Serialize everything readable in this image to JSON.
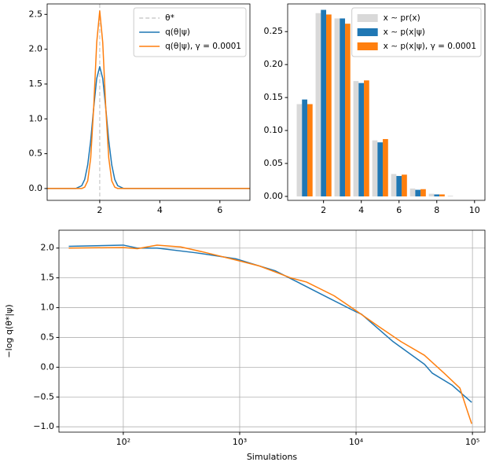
{
  "chart_data": [
    {
      "type": "line",
      "xlim": [
        0.25,
        7
      ],
      "ylim": [
        -0.17,
        2.65
      ],
      "xticks": [
        2,
        4,
        6
      ],
      "yticks": [
        {
          "value": 0,
          "label": "0.0"
        },
        {
          "value": 0.5,
          "label": "0.5"
        },
        {
          "value": 1,
          "label": "1.0"
        },
        {
          "value": 1.5,
          "label": "1.5"
        },
        {
          "value": 2,
          "label": "2.0"
        },
        {
          "value": 2.5,
          "label": "2.5"
        }
      ],
      "reference_lines": [
        {
          "name": "θ*",
          "x": 2,
          "color": "#cccccc",
          "dashed": true
        }
      ],
      "series": [
        {
          "name": "q(θ|ψ)",
          "color": "#1f77b4",
          "x": [
            0.25,
            1,
            1.2,
            1.4,
            1.5,
            1.6,
            1.7,
            1.8,
            1.9,
            2,
            2.1,
            2.2,
            2.3,
            2.4,
            2.5,
            2.6,
            2.8,
            3,
            7
          ],
          "values": [
            0,
            0,
            0,
            0.04,
            0.13,
            0.34,
            0.69,
            1.16,
            1.58,
            1.75,
            1.58,
            1.16,
            0.69,
            0.34,
            0.13,
            0.04,
            0,
            0,
            0
          ]
        },
        {
          "name": "q(θ|ψ), γ = 0.0001",
          "color": "#ff7f0e",
          "x": [
            0.25,
            1,
            1.2,
            1.4,
            1.5,
            1.6,
            1.7,
            1.8,
            1.9,
            2,
            2.1,
            2.2,
            2.3,
            2.4,
            2.5,
            2.6,
            2.8,
            3,
            7
          ],
          "values": [
            0,
            0,
            0,
            0,
            0.02,
            0.11,
            0.44,
            1.17,
            2.1,
            2.55,
            2.1,
            1.17,
            0.44,
            0.11,
            0.02,
            0,
            0,
            0,
            0
          ]
        }
      ],
      "legend": "upper right",
      "grid": false
    },
    {
      "type": "bar",
      "categories": [
        1,
        2,
        3,
        4,
        5,
        6,
        7,
        8,
        9,
        10
      ],
      "xlim": [
        0.1,
        10.55
      ],
      "ylim": [
        -0.006,
        0.292
      ],
      "xticks": [
        2,
        4,
        6,
        8,
        10
      ],
      "yticks": [
        {
          "value": 0,
          "label": "0.00"
        },
        {
          "value": 0.05,
          "label": "0.05"
        },
        {
          "value": 0.1,
          "label": "0.10"
        },
        {
          "value": 0.15,
          "label": "0.15"
        },
        {
          "value": 0.2,
          "label": "0.20"
        },
        {
          "value": 0.25,
          "label": "0.25"
        }
      ],
      "series": [
        {
          "name": "x ∼ pr(x)",
          "color": "#d9d9d9",
          "values": [
            0.14,
            0.278,
            0.27,
            0.175,
            0.085,
            0.034,
            0.012,
            0.004,
            0.001,
            0
          ]
        },
        {
          "name": "x ∼ p(x|ψ)",
          "color": "#1f77b4",
          "values": [
            0.147,
            0.283,
            0.27,
            0.172,
            0.082,
            0.031,
            0.01,
            0.003,
            0,
            0
          ]
        },
        {
          "name": "x ∼ p(x|ψ), γ = 0.0001",
          "color": "#ff7f0e",
          "values": [
            0.14,
            0.276,
            0.262,
            0.176,
            0.087,
            0.033,
            0.011,
            0.003,
            0,
            0
          ]
        }
      ],
      "legend": "upper right",
      "grid": false
    },
    {
      "type": "line",
      "x_label": "Simulations",
      "y_label": "−log q(θ*|ψ)",
      "xscale": "log",
      "xlim": [
        28,
        128000
      ],
      "ylim": [
        -1.09,
        2.3
      ],
      "xticks": [
        {
          "value": 100,
          "label": "10²"
        },
        {
          "value": 1000,
          "label": "10³"
        },
        {
          "value": 10000,
          "label": "10⁴"
        },
        {
          "value": 100000,
          "label": "10⁵"
        }
      ],
      "yticks": [
        {
          "value": -1,
          "label": "−1.0"
        },
        {
          "value": -0.5,
          "label": "−0.5"
        },
        {
          "value": 0,
          "label": "0.0"
        },
        {
          "value": 0.5,
          "label": "0.5"
        },
        {
          "value": 1,
          "label": "1.0"
        },
        {
          "value": 1.5,
          "label": "1.5"
        },
        {
          "value": 2,
          "label": "2.0"
        }
      ],
      "series": [
        {
          "color": "#1f77b4",
          "x": [
            34,
            100,
            132,
            195,
            425,
            925,
            2014,
            3212,
            5985,
            10000,
            11150,
            20800,
            38700,
            45200,
            66700,
            98500
          ],
          "values": [
            2.03,
            2.05,
            2.0,
            2.0,
            1.92,
            1.82,
            1.62,
            1.42,
            1.15,
            0.93,
            0.89,
            0.43,
            0.05,
            -0.1,
            -0.3,
            -0.59
          ]
        },
        {
          "color": "#ff7f0e",
          "x": [
            34,
            100,
            132,
            195,
            311,
            497,
            925,
            1476,
            2014,
            2748,
            3750,
            6470,
            10000,
            15200,
            24300,
            38700,
            57100,
            78000,
            91000,
            98500
          ],
          "values": [
            2.0,
            2.01,
            1.99,
            2.05,
            2.02,
            1.93,
            1.8,
            1.7,
            1.6,
            1.5,
            1.43,
            1.2,
            0.95,
            0.7,
            0.43,
            0.2,
            -0.1,
            -0.35,
            -0.75,
            -0.95
          ]
        }
      ],
      "grid": true
    }
  ]
}
